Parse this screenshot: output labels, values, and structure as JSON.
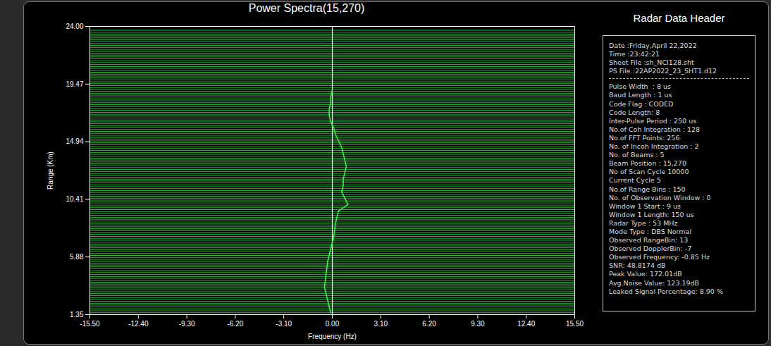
{
  "chart_data": {
    "type": "spectra",
    "title": "Power Spectra(15,270)",
    "x_label": "Frequency (Hz)",
    "y_label": "Range (Km)",
    "xlim": [
      -15.5,
      15.5
    ],
    "xticks": [
      {
        "value": -15.5,
        "label": "-15.50"
      },
      {
        "value": -12.4,
        "label": "-12.40"
      },
      {
        "value": -9.3,
        "label": "-9.30"
      },
      {
        "value": -6.2,
        "label": "-6.20"
      },
      {
        "value": -3.1,
        "label": "-3.10"
      },
      {
        "value": 0,
        "label": "0.00"
      },
      {
        "value": 3.1,
        "label": "3.10"
      },
      {
        "value": 6.2,
        "label": "6.20"
      },
      {
        "value": 9.3,
        "label": "9.30"
      },
      {
        "value": 12.4,
        "label": "12.40"
      },
      {
        "value": 15.5,
        "label": "15.50"
      }
    ],
    "ylim": [
      1.35,
      24.0
    ],
    "yticks": [
      1.35,
      5.88,
      10.41,
      14.94,
      19.47,
      {
        "value": 24.0,
        "label": "24.00"
      }
    ],
    "grid": false,
    "color": "#3cf24a",
    "zero_line": 0,
    "range_bins": [
      1.35,
      1.5,
      1.65,
      1.8,
      1.95,
      2.1,
      2.25,
      2.4,
      2.55,
      2.7,
      2.85,
      3,
      3.15,
      3.3,
      3.45,
      3.6,
      3.75,
      3.9,
      4.05,
      4.2,
      4.35,
      4.5,
      4.65,
      4.8,
      4.95,
      5.1,
      5.25,
      5.4,
      5.55,
      5.7,
      5.85,
      6,
      6.15,
      6.3,
      6.45,
      6.6,
      6.75,
      6.9,
      7.05,
      7.2,
      7.35,
      7.5,
      7.65,
      7.8,
      7.95,
      8.1,
      8.25,
      8.4,
      8.55,
      8.7,
      8.85,
      9,
      9.15,
      9.3,
      9.45,
      9.6,
      9.75,
      9.9,
      10.05,
      10.2,
      10.35,
      10.5,
      10.65,
      10.8,
      10.95,
      11.1,
      11.25,
      11.4,
      11.55,
      11.7,
      11.85,
      12,
      12.15,
      12.3,
      12.45,
      12.6,
      12.75,
      12.9,
      13.05,
      13.2,
      13.35,
      13.5,
      13.65,
      13.8,
      13.95,
      14.1,
      14.25,
      14.4,
      14.55,
      14.7,
      14.85,
      15,
      15.15,
      15.3,
      15.45,
      15.6,
      15.75,
      15.9,
      16.05,
      16.2,
      16.35,
      16.5,
      16.65,
      16.8,
      16.95,
      17.1,
      17.25,
      17.4,
      17.55,
      17.7,
      17.85,
      18,
      18.15,
      18.3,
      18.45,
      18.6,
      18.75,
      18.9,
      19.05,
      19.2,
      19.35,
      19.5,
      19.65,
      19.8,
      19.95,
      20.1,
      20.25,
      20.4,
      20.55,
      20.7,
      20.85,
      21,
      21.15,
      21.3,
      21.45,
      21.6,
      21.75,
      21.9,
      22.05,
      22.2,
      22.35,
      22.5,
      22.65,
      22.8,
      22.95,
      23.1,
      23.25,
      23.4,
      23.55,
      23.7
    ],
    "peak_trace": {
      "range": [
        1.5,
        2.5,
        3.5,
        4.5,
        5.5,
        6.5,
        7.5,
        8.5,
        9.5,
        10.0,
        10.5,
        11.0,
        11.5,
        12.0,
        12.5,
        13.0,
        13.5,
        14.0,
        14.5,
        15.0,
        15.5,
        16.0,
        16.5,
        17.0,
        17.5,
        18.0,
        18.5,
        19.0
      ],
      "frequency": [
        -0.1,
        -0.3,
        -0.5,
        -0.4,
        -0.3,
        -0.1,
        0.1,
        0.2,
        0.4,
        1.0,
        0.8,
        0.6,
        0.7,
        0.7,
        0.8,
        0.9,
        0.8,
        0.7,
        0.6,
        0.4,
        0.2,
        0.1,
        -0.1,
        -0.2,
        -0.2,
        -0.1,
        -0.1,
        0.0
      ]
    }
  },
  "header": {
    "title": "Radar Data Header",
    "groups": [
      [
        "Date :Friday,April 22,2022",
        "Time :23:42:21",
        "Sheet File :sh_NCI128.sht",
        "PS File :22AP2022_23_SHT1.d12"
      ],
      [
        "Pulse Width  : 8 us",
        "Baud Length : 1 us",
        "Code Flag : CODED",
        "Code Length: 8",
        "Inter-Pulse Period : 250 us",
        "No.of Coh Integration : 128",
        "No.of FFT Points: 256",
        "No. of Incoh Integration : 2",
        "No. of Beams : 5",
        "Beam Position : 15,270",
        "No of Scan Cycle 10000",
        "Current Cycle 5",
        "No.of Range Bins : 150",
        "No. of Observation Window : 0",
        "Window 1 Start : 9 us",
        "Window 1 Length: 150 us",
        "Radar Type : 53 MHz",
        "Mode Type : DBS Normal",
        "Observed RangeBin: 13",
        "Observed DopplerBin: -7",
        "Observed Frequency: -0.85 Hz",
        "SNR: 48.8174 dB",
        "Peak Value: 172.01dB",
        "Avg.Noise Value: 123.19dB",
        "Leaked Signal Percentage: 8.90 %"
      ]
    ]
  }
}
